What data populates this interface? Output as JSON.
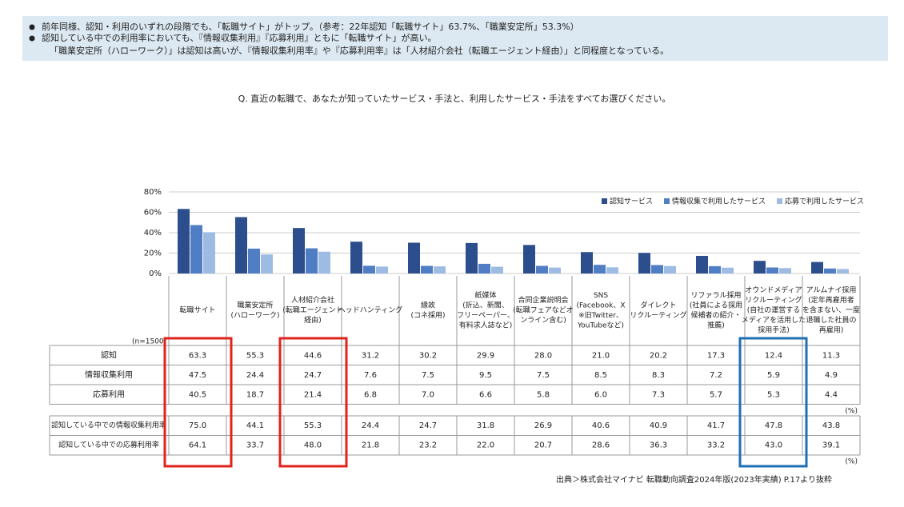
{
  "banner": {
    "lines": [
      "前年同様、認知・利用のいずれの段階でも、「転職サイト」がトップ。（参考：22年認知「転職サイト」63.7%、「職業安定所」53.3%）",
      "認知している中での利用率においても、『情報収集利用』『応募利用』ともに「転職サイト」が高い。",
      "「職業安定所（ハローワーク）」は認知は高いが、『情報収集利用率』や『応募利用率』は「人材紹介会社（転職エージェント経由）」と同程度となっている。"
    ]
  },
  "question": "Q.  直近の転職で、あなたが知っていたサービス・手法と、利用したサービス・手法をすべてお選びください。",
  "chart_data": {
    "type": "bar",
    "categories": [
      [
        "転職サイト"
      ],
      [
        "職業安定所",
        "(ハローワーク)"
      ],
      [
        "人材紹介会社",
        "(転職エージェント",
        "経由)"
      ],
      [
        "ヘッドハンティング"
      ],
      [
        "縁故",
        "(コネ採用)"
      ],
      [
        "紙媒体",
        "(折込、新聞、",
        "フリーペーパー、",
        "有料求人誌など)"
      ],
      [
        "合同企業説明会",
        "(転職フェアなどオ",
        "ンライン含む)"
      ],
      [
        "SNS",
        "(Facebook、X",
        "※旧Twitter、",
        "YouTubeなど)"
      ],
      [
        "ダイレクト",
        "リクルーティング"
      ],
      [
        "リファラル採用",
        "(社員による採用",
        "候補者の紹介・",
        "推薦)"
      ],
      [
        "オウンドメディア",
        "リクルーティング",
        "(自社の運営する",
        "メディアを活用した",
        "採用手法)"
      ],
      [
        "アルムナイ採用",
        "(定年再雇用者",
        "を含まない、一度",
        "退職した社員の",
        "再雇用)"
      ]
    ],
    "n_label": "(n=1500",
    "row_labels": [
      "認知",
      "情報収集利用",
      "応募利用"
    ],
    "series": [
      {
        "name": "認知サービス",
        "color": "#2c4e8c",
        "values": [
          63.3,
          55.3,
          44.6,
          31.2,
          30.2,
          29.9,
          28.0,
          21.0,
          20.2,
          17.3,
          12.4,
          11.3
        ],
        "value_labels": [
          "63.3",
          "55.3",
          "44.6",
          "31.2",
          "30.2",
          "29.9",
          "28.0",
          "21.0",
          "20.2",
          "17.3",
          "12.4",
          "11.3"
        ]
      },
      {
        "name": "情報収集で利用したサービス",
        "color": "#4f7ec4",
        "values": [
          47.5,
          24.4,
          24.7,
          7.6,
          7.5,
          9.5,
          7.5,
          8.5,
          8.3,
          7.2,
          5.9,
          4.9
        ],
        "value_labels": [
          "47.5",
          "24.4",
          "24.7",
          "7.6",
          "7.5",
          "9.5",
          "7.5",
          "8.5",
          "8.3",
          "7.2",
          "5.9",
          "4.9"
        ]
      },
      {
        "name": "応募で利用したサービス",
        "color": "#9dbbe3",
        "values": [
          40.5,
          18.7,
          21.4,
          6.8,
          7.0,
          6.6,
          5.8,
          6.0,
          7.3,
          5.7,
          5.3,
          4.4
        ],
        "value_labels": [
          "40.5",
          "18.7",
          "21.4",
          "6.8",
          "7.0",
          "6.6",
          "5.8",
          "6.0",
          "7.3",
          "5.7",
          "5.3",
          "4.4"
        ]
      }
    ],
    "ylim": [
      0,
      80
    ],
    "yticks": [
      {
        "value": 0,
        "label": "0%"
      },
      {
        "value": 20,
        "label": "20%"
      },
      {
        "value": 40,
        "label": "40%"
      },
      {
        "value": 60,
        "label": "60%"
      },
      {
        "value": 80,
        "label": "80%"
      }
    ],
    "grid": true,
    "legend": "top-right"
  },
  "table": {
    "unit_labels": [
      "(%)",
      "(%)"
    ],
    "rows": [
      {
        "label": "認知している中での情報収集利用率",
        "values": [
          "75.0",
          "44.1",
          "55.3",
          "24.4",
          "24.7",
          "31.8",
          "26.9",
          "40.6",
          "40.9",
          "41.7",
          "47.8",
          "43.8"
        ]
      },
      {
        "label": "認知している中での応募利用率",
        "values": [
          "64.1",
          "33.7",
          "48.0",
          "21.8",
          "23.2",
          "22.0",
          "20.7",
          "28.6",
          "36.3",
          "33.2",
          "43.0",
          "39.1"
        ]
      }
    ]
  },
  "source": "出典＞株式会社マイナビ 転職動向調査2024年版(2023年実績) P.17より抜粋"
}
